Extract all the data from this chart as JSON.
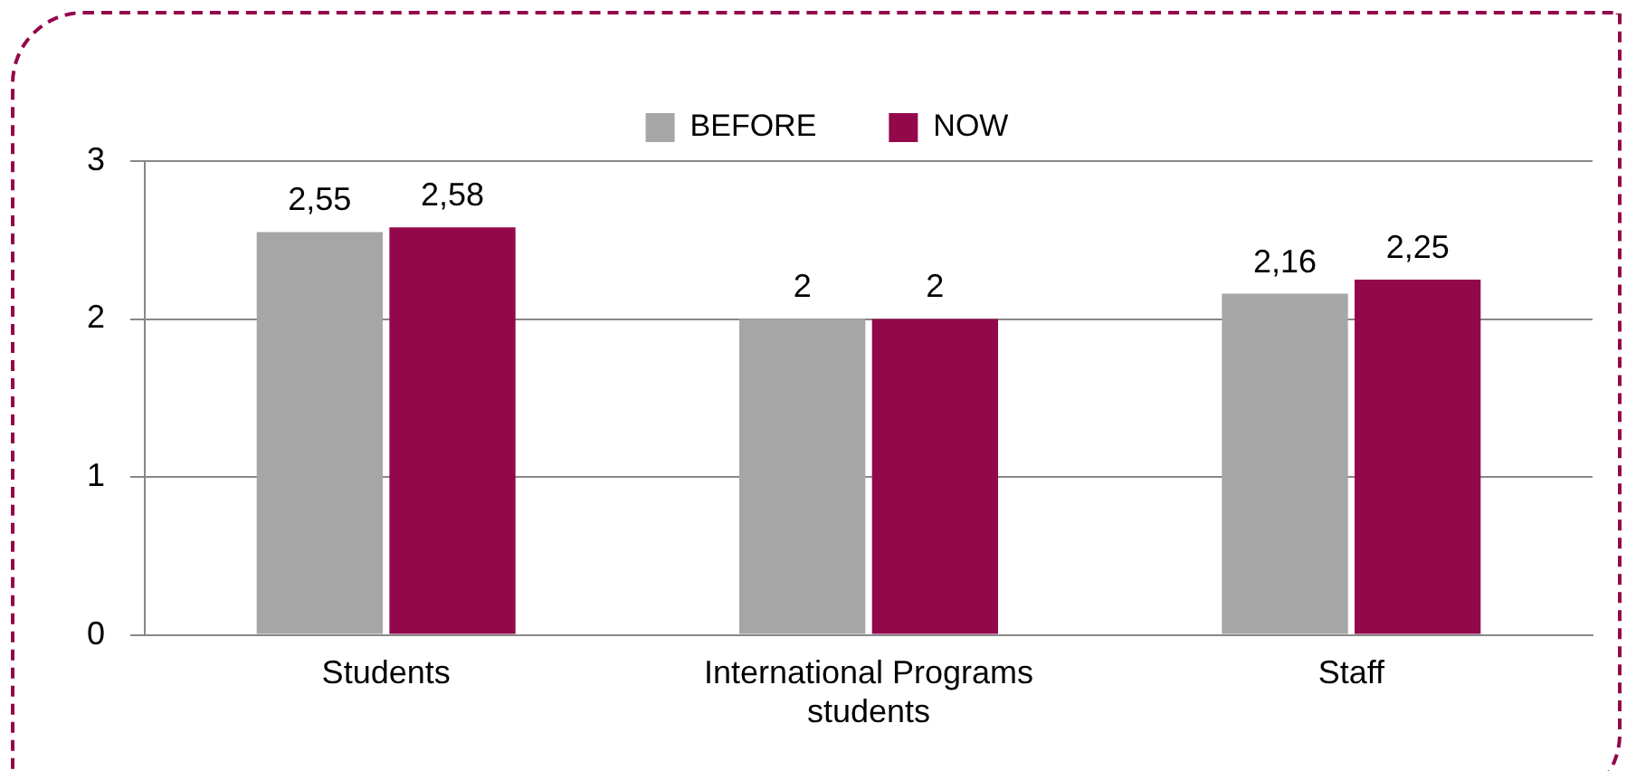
{
  "chart_data": {
    "type": "bar",
    "categories": [
      "Students",
      "International Programs students",
      "Staff"
    ],
    "series": [
      {
        "name": "BEFORE",
        "color": "#a6a6a6",
        "values": [
          2.55,
          2,
          2.16
        ],
        "value_labels": [
          "2,55",
          "2",
          "2,16"
        ]
      },
      {
        "name": "NOW",
        "color": "#93074b",
        "values": [
          2.58,
          2,
          2.25
        ],
        "value_labels": [
          "2,58",
          "2",
          "2,25"
        ]
      }
    ],
    "ylim": [
      0,
      3
    ],
    "yticks": [
      0,
      1,
      2,
      3
    ],
    "grid": "y",
    "legend": "top"
  }
}
